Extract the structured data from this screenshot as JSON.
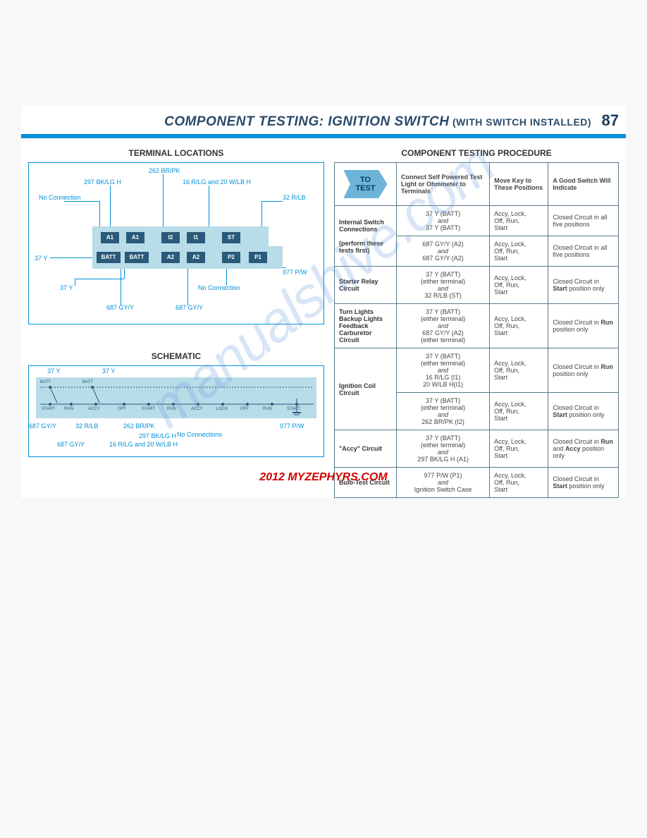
{
  "header": {
    "title_main": "COMPONENT TESTING: IGNITION SWITCH",
    "title_sub": "(WITH SWITCH INSTALLED)",
    "page_number": "87"
  },
  "terminal_locations": {
    "heading": "TERMINAL LOCATIONS",
    "labels": {
      "top_262": "262 BR/PK",
      "top_297": "297 BK/LG H",
      "top_16": "16 R/LG and 20 W/LB H",
      "no_conn_left": "No Connection",
      "right_32": "32 R/LB",
      "left_37y_1": "37 Y",
      "left_37y_2": "37 Y",
      "right_977": "977 P/W",
      "bot_687_1": "687 GY/Y",
      "bot_687_2": "687 GY/Y",
      "no_conn_right": "No Connection"
    },
    "terminals_row1": [
      "A1",
      "A1",
      "I2",
      "I1",
      "ST"
    ],
    "terminals_row2": [
      "BATT",
      "BATT",
      "A2",
      "A2",
      "P2",
      "P1"
    ],
    "diagram_colors": {
      "connector_bg": "#b8dce8",
      "cell_bg": "#2a5a7a",
      "border": "#0090d8",
      "text": "#0090d8"
    }
  },
  "schematic": {
    "heading": "SCHEMATIC",
    "top_labels": [
      "37 Y",
      "37 Y"
    ],
    "bottom_labels": [
      "687 GY/Y",
      "32 R/LB",
      "262 BR/PK",
      "977 P/W"
    ],
    "bottom_labels2": [
      "687 GY/Y",
      "16 R/LG and 20 W/LB H",
      "297 BK/LG H"
    ],
    "no_conn": "No Connections",
    "switch_positions": [
      "START",
      "RUN",
      "OFF",
      "ACCY",
      "LOCK"
    ],
    "terminals": [
      "BATT",
      "BATT",
      "A1",
      "A1",
      "I2",
      "I1",
      "ST",
      "A2",
      "A2",
      "P2",
      "P1"
    ]
  },
  "procedure": {
    "heading": "COMPONENT TESTING PROCEDURE",
    "header": {
      "to_test": "TO TEST",
      "col1": "Connect Self Powered Test Light or Ohmmeter to Terminals",
      "col2": "Move Key to These Positions",
      "col3": "A Good Switch Will Indicate"
    },
    "rows": [
      {
        "test": "Internal Switch Connections",
        "test_note": "(perform these tests first)",
        "rowspan": 2,
        "sub": [
          {
            "c1a": "37 Y (BATT)",
            "and": "and",
            "c1b": "37 Y (BATT)",
            "c2": "Accy, Lock, Off, Run, Start",
            "c3": "Closed Circuit in all five positions"
          },
          {
            "c1a": "687 GY/Y (A2)",
            "and": "and",
            "c1b": "687 GY/Y (A2)",
            "c2": "Accy, Lock, Off, Run, Start",
            "c3": "Closed Circuit in all five positions"
          }
        ]
      },
      {
        "test": "Starter Relay Circuit",
        "rowspan": 1,
        "sub": [
          {
            "c1a": "37 Y (BATT)",
            "c1n": "(either terminal)",
            "and": "and",
            "c1b": "32 R/LB (ST)",
            "c2": "Accy, Lock, Off, Run, Start",
            "c3": "Closed Circuit in Start position only",
            "bold": "Start"
          }
        ]
      },
      {
        "test": "Turn Lights Backup Lights Feedback Carburetor Circuit",
        "rowspan": 1,
        "sub": [
          {
            "c1a": "37 Y (BATT)",
            "c1n": "(either terminal)",
            "and": "and",
            "c1b": "687 GY/Y (A2)",
            "c1bn": "(either terminal)",
            "c2": "Accy, Lock, Off, Run, Start",
            "c3": "Closed Circuit in Run position only",
            "bold": "Run"
          }
        ]
      },
      {
        "test": "Ignition Coil Circuit",
        "rowspan": 2,
        "sub": [
          {
            "c1a": "37 Y (BATT)",
            "c1n": "(either terminal)",
            "and": "and",
            "c1b": "16 R/LG (I1)",
            "c1b2": "20 W/LB H(I1)",
            "c2": "Accy, Lock, Off, Run, Start",
            "c3": "Closed Circuit in Run position only",
            "bold": "Run"
          },
          {
            "c1a": "37 Y (BATT)",
            "c1n": "(either terminal)",
            "and": "and",
            "c1b": "262 BR/PK (I2)",
            "c2": "Accy, Lock, Off, Run, Start",
            "c3": "Closed Circuit in Start position only",
            "bold": "Start"
          }
        ]
      },
      {
        "test": "\"Accy\" Circuit",
        "rowspan": 1,
        "sub": [
          {
            "c1a": "37 Y (BATT)",
            "c1n": "(either terminal)",
            "and": "and",
            "c1b": "297 BK/LG H (A1)",
            "c2": "Accy, Lock, Off, Run, Start",
            "c3": "Closed Circuit in Run and Accy position only",
            "bold": "Run",
            "bold2": "Accy"
          }
        ]
      },
      {
        "test": "Bulb-Test Circuit",
        "rowspan": 1,
        "sub": [
          {
            "c1a": "977 P/W (P1)",
            "and": "and",
            "c1b": "Ignition Switch Case",
            "c2": "Accy, Lock, Off, Run, Start",
            "c3": "Closed Circuit in Start position only",
            "bold": "Start"
          }
        ]
      }
    ]
  },
  "footer": "2012 MYZEPHYRS.COM",
  "watermark": "manualshive.com",
  "colors": {
    "accent_blue": "#0090d8",
    "dark_blue": "#2a5a7a",
    "light_blue": "#b8dce8",
    "brand_red": "#d00000"
  }
}
